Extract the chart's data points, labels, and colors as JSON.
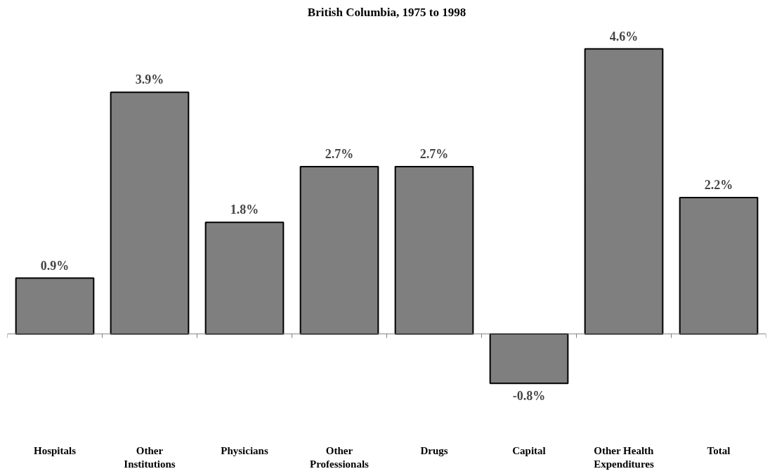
{
  "chart_data": {
    "type": "bar",
    "title": "British Columbia, 1975 to 1998",
    "categories": [
      "Hospitals",
      "Other Institutions",
      "Physicians",
      "Other Professionals",
      "Drugs",
      "Capital",
      "Other Health Expenditures",
      "Total"
    ],
    "values": [
      0.9,
      3.9,
      1.8,
      2.7,
      2.7,
      -0.8,
      4.6,
      2.2
    ],
    "value_labels": [
      "0.9%",
      "3.9%",
      "1.8%",
      "2.7%",
      "2.7%",
      "-0.8%",
      "4.6%",
      "2.2%"
    ],
    "color": "#7f7f7f",
    "grid": false
  }
}
